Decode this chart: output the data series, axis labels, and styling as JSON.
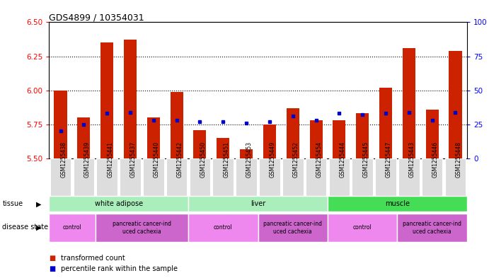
{
  "title": "GDS4899 / 10354031",
  "samples": [
    "GSM1255438",
    "GSM1255439",
    "GSM1255441",
    "GSM1255437",
    "GSM1255440",
    "GSM1255442",
    "GSM1255450",
    "GSM1255451",
    "GSM1255453",
    "GSM1255449",
    "GSM1255452",
    "GSM1255454",
    "GSM1255444",
    "GSM1255445",
    "GSM1255447",
    "GSM1255443",
    "GSM1255446",
    "GSM1255448"
  ],
  "transformed_count": [
    6.0,
    5.8,
    6.35,
    6.37,
    5.8,
    5.99,
    5.71,
    5.65,
    5.57,
    5.75,
    5.87,
    5.78,
    5.78,
    5.83,
    6.02,
    6.31,
    5.86,
    6.29
  ],
  "percentile_rank": [
    20,
    25,
    33,
    34,
    28,
    28,
    27,
    27,
    26,
    27,
    31,
    28,
    33,
    32,
    33,
    34,
    28,
    34
  ],
  "ylim_left": [
    5.5,
    6.5
  ],
  "ylim_right": [
    0,
    100
  ],
  "yticks_left": [
    5.5,
    5.75,
    6.0,
    6.25,
    6.5
  ],
  "yticks_right": [
    0,
    25,
    50,
    75,
    100
  ],
  "grid_lines": [
    5.75,
    6.0,
    6.25
  ],
  "bar_color": "#cc2200",
  "dot_color": "#0000cc",
  "bar_width": 0.55,
  "tissues": [
    {
      "label": "white adipose",
      "start": 0,
      "end": 6,
      "color": "#aaeebb"
    },
    {
      "label": "liver",
      "start": 6,
      "end": 12,
      "color": "#aaeebb"
    },
    {
      "label": "muscle",
      "start": 12,
      "end": 18,
      "color": "#44dd55"
    }
  ],
  "disease_states": [
    {
      "label": "control",
      "start": 0,
      "end": 2,
      "color": "#ee88ee"
    },
    {
      "label": "pancreatic cancer-ind\nuced cachexia",
      "start": 2,
      "end": 6,
      "color": "#cc66cc"
    },
    {
      "label": "control",
      "start": 6,
      "end": 9,
      "color": "#ee88ee"
    },
    {
      "label": "pancreatic cancer-ind\nuced cachexia",
      "start": 9,
      "end": 12,
      "color": "#cc66cc"
    },
    {
      "label": "control",
      "start": 12,
      "end": 15,
      "color": "#ee88ee"
    },
    {
      "label": "pancreatic cancer-ind\nuced cachexia",
      "start": 15,
      "end": 18,
      "color": "#cc66cc"
    }
  ],
  "background_color": "#ffffff",
  "plot_bg_color": "#ffffff",
  "xtick_bg_color": "#dddddd"
}
